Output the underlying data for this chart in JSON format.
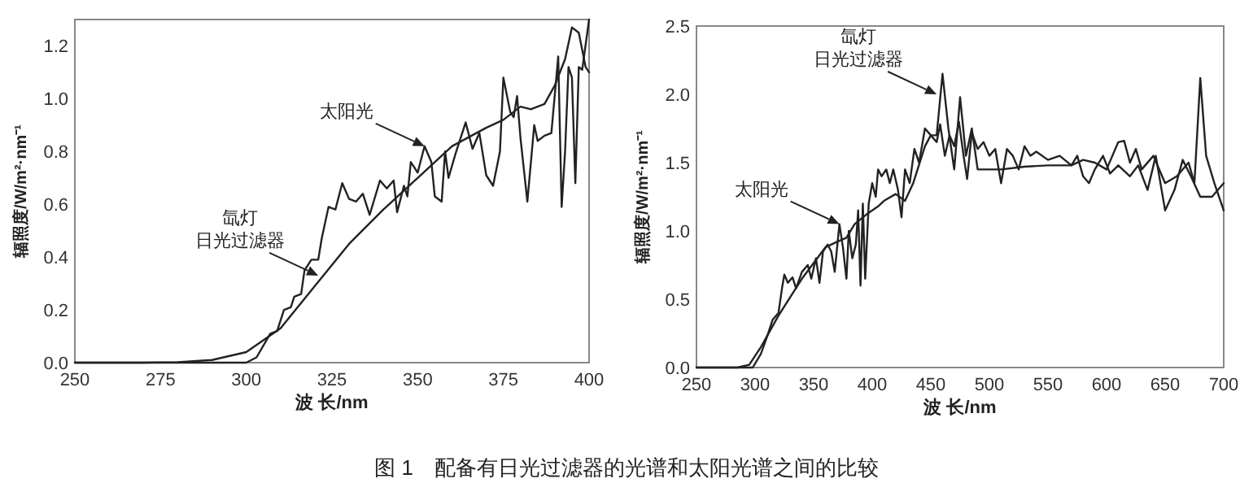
{
  "chart_data": [
    {
      "type": "line",
      "xlabel": "波 长/nm",
      "ylabel": "辐照度/W/m²·nm⁻¹",
      "xlim": [
        250,
        400
      ],
      "ylim": [
        0,
        1.3
      ],
      "xticks": [
        250,
        275,
        300,
        325,
        350,
        375,
        400
      ],
      "yticks": [
        {
          "value": 0,
          "label": "0.0"
        },
        {
          "value": 0.2,
          "label": "0.2"
        },
        {
          "value": 0.4,
          "label": "0.4"
        },
        {
          "value": 0.6,
          "label": "0.6"
        },
        {
          "value": 0.8,
          "label": "0.8"
        },
        {
          "value": 1,
          "label": "1.0"
        },
        {
          "value": 1.2,
          "label": "1.2"
        }
      ],
      "grid": false,
      "series": [
        {
          "color": "#222222",
          "x": [
            250,
            270,
            280,
            290,
            300,
            310,
            320,
            330,
            340,
            350,
            360,
            370,
            375,
            380,
            383,
            387,
            390,
            393,
            395,
            397,
            399,
            400
          ],
          "values": [
            0,
            0,
            0.002,
            0.01,
            0.04,
            0.13,
            0.29,
            0.45,
            0.58,
            0.7,
            0.82,
            0.89,
            0.92,
            0.97,
            0.96,
            0.98,
            1.05,
            1.15,
            1.27,
            1.25,
            1.12,
            1.1
          ]
        },
        {
          "color": "#222222",
          "x": [
            250,
            300,
            303,
            307,
            309,
            311,
            313,
            314,
            316,
            317,
            319,
            321,
            322,
            324,
            326,
            328,
            330,
            332,
            334,
            336,
            339,
            341,
            343,
            344,
            346,
            347,
            348,
            350,
            352,
            354,
            355,
            357,
            358,
            359,
            361,
            364,
            366,
            368,
            370,
            372,
            374,
            375,
            377,
            378,
            379,
            380,
            382,
            384,
            385,
            387,
            389,
            391,
            392,
            393,
            394,
            395,
            396,
            397,
            398,
            400
          ],
          "values": [
            0,
            0,
            0.02,
            0.11,
            0.12,
            0.2,
            0.21,
            0.25,
            0.26,
            0.35,
            0.39,
            0.39,
            0.47,
            0.59,
            0.58,
            0.68,
            0.62,
            0.61,
            0.64,
            0.56,
            0.69,
            0.66,
            0.69,
            0.57,
            0.67,
            0.63,
            0.76,
            0.72,
            0.82,
            0.76,
            0.63,
            0.61,
            0.8,
            0.7,
            0.79,
            0.91,
            0.81,
            0.87,
            0.71,
            0.67,
            0.8,
            1.08,
            0.95,
            0.93,
            1.01,
            0.85,
            0.61,
            0.9,
            0.84,
            0.86,
            0.87,
            1.16,
            0.59,
            0.8,
            1.12,
            1.08,
            0.68,
            1.12,
            1.11,
            1.3
          ]
        }
      ],
      "annotations": [
        {
          "text": "太阳光",
          "x": 352,
          "y": 0.82
        },
        "氙灯",
        {
          "text": "日光过滤器",
          "x": 321,
          "y": 0.33
        },
        "图 1　配备有日光过滤器的光谱和太阳光谱之间的比较"
      ]
    },
    {
      "type": "line",
      "xlabel": "波 长/nm",
      "ylabel": "辐照度/W/m²·nm⁻¹",
      "xlim": [
        250,
        700
      ],
      "ylim": [
        0,
        2.5
      ],
      "xticks": [
        250,
        300,
        350,
        400,
        450,
        500,
        550,
        600,
        650,
        700
      ],
      "yticks": [
        {
          "value": 0,
          "label": "0.0"
        },
        {
          "value": 0.5,
          "label": "0.5"
        },
        {
          "value": 1,
          "label": "1.0"
        },
        {
          "value": 1.5,
          "label": "1.5"
        },
        {
          "value": 2,
          "label": "2.0"
        },
        {
          "value": 2.5,
          "label": "2.5"
        }
      ],
      "grid": false,
      "series": [
        {
          "color": "#222222",
          "x": [
            250,
            285,
            295,
            305,
            320,
            340,
            360,
            370,
            378,
            385,
            395,
            405,
            410,
            420,
            428,
            435,
            445,
            450,
            455,
            460,
            465,
            470,
            475,
            480,
            485,
            490,
            510,
            530,
            550,
            570,
            580,
            590,
            600,
            610,
            615,
            620,
            625,
            630,
            640,
            650,
            660,
            670,
            675,
            680,
            685,
            692,
            700
          ],
          "values": [
            0,
            0,
            0.02,
            0.15,
            0.38,
            0.65,
            0.88,
            0.92,
            0.95,
            1.05,
            1.12,
            1.18,
            1.22,
            1.27,
            1.22,
            1.35,
            1.62,
            1.7,
            1.7,
            2.15,
            1.75,
            1.45,
            1.98,
            1.55,
            1.75,
            1.45,
            1.45,
            1.47,
            1.48,
            1.48,
            1.52,
            1.5,
            1.45,
            1.65,
            1.66,
            1.5,
            1.6,
            1.45,
            1.55,
            1.35,
            1.4,
            1.5,
            1.35,
            2.12,
            1.55,
            1.35,
            1.15
          ]
        },
        {
          "color": "#222222",
          "x": [
            250,
            298,
            305,
            310,
            315,
            320,
            323,
            325,
            328,
            332,
            335,
            340,
            345,
            348,
            352,
            355,
            358,
            362,
            365,
            368,
            372,
            375,
            378,
            380,
            383,
            386,
            388,
            390,
            392,
            394,
            397,
            400,
            403,
            405,
            408,
            412,
            415,
            418,
            422,
            425,
            428,
            432,
            436,
            440,
            445,
            450,
            455,
            458,
            462,
            466,
            470,
            474,
            478,
            481,
            485,
            490,
            495,
            500,
            505,
            510,
            515,
            520,
            525,
            530,
            535,
            540,
            550,
            560,
            570,
            575,
            580,
            585,
            590,
            597,
            603,
            610,
            620,
            627,
            635,
            642,
            650,
            658,
            665,
            672,
            680,
            690,
            700
          ],
          "values": [
            0,
            0,
            0.1,
            0.22,
            0.35,
            0.4,
            0.58,
            0.68,
            0.62,
            0.66,
            0.58,
            0.7,
            0.75,
            0.65,
            0.8,
            0.62,
            0.85,
            0.9,
            0.85,
            0.7,
            1.05,
            0.88,
            0.65,
            1.0,
            0.8,
            0.9,
            1.15,
            0.6,
            1.2,
            0.65,
            1.2,
            1.35,
            1.25,
            1.45,
            1.4,
            1.45,
            1.35,
            1.45,
            1.3,
            1.1,
            1.45,
            1.35,
            1.6,
            1.5,
            1.75,
            1.7,
            1.65,
            1.78,
            1.55,
            1.7,
            1.62,
            1.8,
            1.55,
            1.38,
            1.72,
            1.6,
            1.65,
            1.55,
            1.6,
            1.35,
            1.6,
            1.55,
            1.45,
            1.62,
            1.55,
            1.58,
            1.52,
            1.55,
            1.48,
            1.55,
            1.4,
            1.35,
            1.45,
            1.55,
            1.42,
            1.48,
            1.4,
            1.48,
            1.3,
            1.55,
            1.15,
            1.3,
            1.52,
            1.4,
            1.25,
            1.25,
            1.35
          ]
        }
      ],
      "annotations": [
        "氙灯",
        {
          "text": "日光过滤器",
          "x": 455,
          "y": 2.0
        },
        {
          "text": "太阳光",
          "x": 372,
          "y": 1.05
        }
      ]
    }
  ]
}
